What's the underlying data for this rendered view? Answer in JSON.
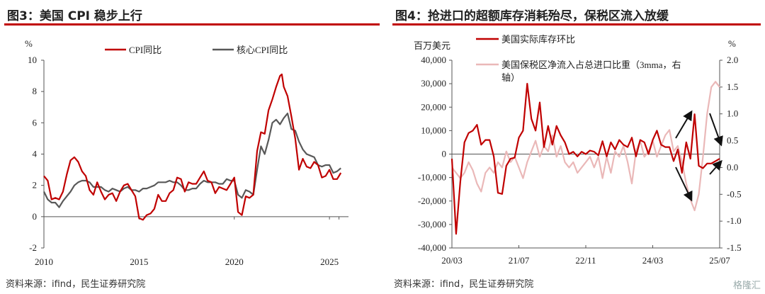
{
  "left": {
    "title": "图3：美国 CPI 稳步上行",
    "source": "资料来源：ifind，民生证券研究院",
    "chart_data": {
      "type": "line",
      "ylabel": "%",
      "ylim": [
        -2,
        10
      ],
      "yticks": [
        "-2",
        "0",
        "2",
        "4",
        "6",
        "8",
        "10"
      ],
      "xlim": [
        2010,
        2026
      ],
      "xticks": [
        "2010",
        "2015",
        "2020",
        "2025"
      ],
      "legend_position": "top",
      "series": [
        {
          "name": "CPI同比",
          "color": "#c00000",
          "x": [
            2010.0,
            2010.2,
            2010.4,
            2010.6,
            2010.8,
            2011.0,
            2011.2,
            2011.4,
            2011.6,
            2011.8,
            2012.0,
            2012.2,
            2012.4,
            2012.6,
            2012.8,
            2013.0,
            2013.2,
            2013.4,
            2013.6,
            2013.8,
            2014.0,
            2014.2,
            2014.4,
            2014.6,
            2014.8,
            2015.0,
            2015.2,
            2015.4,
            2015.6,
            2015.8,
            2016.0,
            2016.2,
            2016.4,
            2016.6,
            2016.8,
            2017.0,
            2017.2,
            2017.4,
            2017.6,
            2017.8,
            2018.0,
            2018.2,
            2018.4,
            2018.6,
            2018.8,
            2019.0,
            2019.2,
            2019.4,
            2019.6,
            2019.8,
            2020.0,
            2020.2,
            2020.4,
            2020.6,
            2020.8,
            2021.0,
            2021.2,
            2021.4,
            2021.6,
            2021.8,
            2022.0,
            2022.2,
            2022.4,
            2022.5,
            2022.6,
            2022.8,
            2023.0,
            2023.2,
            2023.4,
            2023.6,
            2023.8,
            2024.0,
            2024.2,
            2024.4,
            2024.6,
            2024.8,
            2025.0,
            2025.2,
            2025.4,
            2025.6
          ],
          "values": [
            2.6,
            2.3,
            1.1,
            1.2,
            1.1,
            1.6,
            2.7,
            3.6,
            3.8,
            3.5,
            2.9,
            2.6,
            1.7,
            1.4,
            2.2,
            1.6,
            1.1,
            1.4,
            1.5,
            1.0,
            1.6,
            2.0,
            2.1,
            1.7,
            1.3,
            -0.1,
            -0.2,
            0.1,
            0.2,
            0.5,
            1.4,
            1.0,
            1.0,
            1.5,
            1.7,
            2.5,
            2.4,
            1.6,
            2.2,
            2.1,
            2.1,
            2.5,
            2.9,
            2.3,
            2.2,
            1.5,
            1.9,
            1.8,
            1.7,
            2.1,
            2.5,
            0.3,
            0.1,
            1.3,
            1.2,
            1.4,
            4.2,
            5.4,
            5.3,
            6.8,
            7.5,
            8.3,
            9.0,
            9.1,
            8.3,
            7.7,
            6.4,
            5.0,
            3.0,
            3.7,
            3.2,
            3.1,
            3.5,
            3.3,
            2.5,
            2.6,
            3.0,
            2.4,
            2.4,
            2.8
          ]
        },
        {
          "name": "核心CPI同比",
          "color": "#595959",
          "x": [
            2010.0,
            2010.2,
            2010.4,
            2010.6,
            2010.8,
            2011.0,
            2011.2,
            2011.4,
            2011.6,
            2011.8,
            2012.0,
            2012.2,
            2012.4,
            2012.6,
            2012.8,
            2013.0,
            2013.2,
            2013.4,
            2013.6,
            2013.8,
            2014.0,
            2014.2,
            2014.4,
            2014.6,
            2014.8,
            2015.0,
            2015.2,
            2015.4,
            2015.6,
            2015.8,
            2016.0,
            2016.2,
            2016.4,
            2016.6,
            2016.8,
            2017.0,
            2017.2,
            2017.4,
            2017.6,
            2017.8,
            2018.0,
            2018.2,
            2018.4,
            2018.6,
            2018.8,
            2019.0,
            2019.2,
            2019.4,
            2019.6,
            2019.8,
            2020.0,
            2020.2,
            2020.4,
            2020.6,
            2020.8,
            2021.0,
            2021.2,
            2021.4,
            2021.6,
            2021.8,
            2022.0,
            2022.2,
            2022.4,
            2022.6,
            2022.8,
            2023.0,
            2023.2,
            2023.4,
            2023.6,
            2023.8,
            2024.0,
            2024.2,
            2024.4,
            2024.6,
            2024.8,
            2025.0,
            2025.2,
            2025.4,
            2025.6
          ],
          "values": [
            1.6,
            1.1,
            0.9,
            0.9,
            0.6,
            1.0,
            1.3,
            1.6,
            2.0,
            2.2,
            2.3,
            2.3,
            2.2,
            1.9,
            1.9,
            1.9,
            1.7,
            1.6,
            1.8,
            1.7,
            1.6,
            1.8,
            1.9,
            1.7,
            1.7,
            1.6,
            1.8,
            1.8,
            1.9,
            2.0,
            2.2,
            2.2,
            2.2,
            2.3,
            2.2,
            2.2,
            2.0,
            1.7,
            1.7,
            1.8,
            1.8,
            2.1,
            2.3,
            2.2,
            2.2,
            2.2,
            2.1,
            2.1,
            2.4,
            2.3,
            2.3,
            1.4,
            1.2,
            1.7,
            1.6,
            1.4,
            3.0,
            4.5,
            4.0,
            4.9,
            6.0,
            6.2,
            5.9,
            6.3,
            6.6,
            5.6,
            5.5,
            4.8,
            4.3,
            4.0,
            3.9,
            3.8,
            3.3,
            3.2,
            3.3,
            3.3,
            2.8,
            2.9,
            3.1
          ]
        }
      ]
    }
  },
  "right": {
    "title": "图4：抢进口的超额库存消耗殆尽，保税区流入放缓",
    "source": "资料来源：ifind，民生证券研究院",
    "watermark": "格隆汇",
    "chart_data": {
      "type": "line",
      "ylabel_left": "百万美元",
      "ylabel_right": "%",
      "ylim_left": [
        -40000,
        40000
      ],
      "yticks_left": [
        "40,000",
        "30,000",
        "20,000",
        "10,000",
        "0",
        "-10,000",
        "-20,000",
        "-30,000",
        "-40,000"
      ],
      "ylim_right": [
        -1.5,
        2.0
      ],
      "yticks_right": [
        "2.0",
        "1.5",
        "1.0",
        "0.5",
        "0.0",
        "-0.5",
        "-1.0",
        "-1.5"
      ],
      "xlim": [
        "2020-03",
        "2025-07"
      ],
      "xticks": [
        "20/03",
        "21/07",
        "22/11",
        "24/03",
        "25/07"
      ],
      "annotations": [
        "up-arrow near 2024-10",
        "down-arrow near 2025-06",
        "down-arrow near 2024-10",
        "up-arrow near 2025-06"
      ],
      "series": [
        {
          "name": "美国实际库存环比",
          "color": "#c00000",
          "axis": "left",
          "x": [
            0,
            1,
            2,
            3,
            4,
            5,
            6,
            7,
            8,
            9,
            10,
            11,
            12,
            13,
            14,
            15,
            16,
            17,
            18,
            19,
            20,
            21,
            22,
            23,
            24,
            25,
            26,
            27,
            28,
            29,
            30,
            31,
            32,
            33,
            34,
            35,
            36,
            37,
            38,
            39,
            40,
            41,
            42,
            43,
            44,
            45,
            46,
            47,
            48,
            49,
            50,
            51,
            52,
            53,
            54,
            55,
            56,
            57,
            58,
            59,
            60,
            61,
            62,
            63,
            64
          ],
          "values": [
            -2000,
            -34000,
            -12000,
            5000,
            9000,
            10000,
            12500,
            4000,
            6000,
            6000,
            -1000,
            -16500,
            -17000,
            -5000,
            -2000,
            -1500,
            7000,
            10000,
            30000,
            15000,
            10000,
            22000,
            3000,
            12000,
            4000,
            12000,
            8000,
            5000,
            0,
            1000,
            -1000,
            1000,
            0,
            1500,
            1000,
            -500,
            5500,
            -1000,
            5000,
            2000,
            6000,
            4000,
            3000,
            7000,
            -1000,
            6000,
            5000,
            0,
            6000,
            10000,
            4000,
            3000,
            3000,
            -3000,
            2000,
            -8000,
            5000,
            -2000,
            17000,
            -5000,
            -6000,
            -4000,
            -4000,
            -3000,
            -2000
          ]
        },
        {
          "name": "美国保税区净流入占总进口比重（3mma，右轴）",
          "color": "#eab8b8",
          "axis": "right",
          "x": [
            0,
            1,
            2,
            3,
            4,
            5,
            6,
            7,
            8,
            9,
            10,
            11,
            12,
            13,
            14,
            15,
            16,
            17,
            18,
            19,
            20,
            21,
            22,
            23,
            24,
            25,
            26,
            27,
            28,
            29,
            30,
            31,
            32,
            33,
            34,
            35,
            36,
            37,
            38,
            39,
            40,
            41,
            42,
            43,
            44,
            45,
            46,
            47,
            48,
            49,
            50,
            51,
            52,
            53,
            54,
            55,
            56,
            57,
            58,
            59,
            60,
            61,
            62,
            63,
            64
          ],
          "values": [
            0.0,
            -0.1,
            -0.2,
            -0.1,
            0.1,
            -0.05,
            -0.3,
            -0.45,
            -0.1,
            0.0,
            -0.1,
            0.1,
            0.0,
            0.3,
            0.1,
            0.2,
            0.0,
            -0.2,
            0.1,
            0.3,
            0.5,
            0.2,
            0.4,
            0.3,
            0.6,
            0.2,
            0.4,
            0.1,
            0.0,
            0.1,
            -0.1,
            0.0,
            0.1,
            0.2,
            0.0,
            0.2,
            -0.2,
            0.2,
            -0.1,
            0.3,
            0.2,
            0.4,
            0.1,
            -0.3,
            0.3,
            0.5,
            0.2,
            0.3,
            0.5,
            0.2,
            0.4,
            0.6,
            0.7,
            0.3,
            0.4,
            0.1,
            -0.3,
            -0.6,
            -0.8,
            -0.5,
            0.2,
            1.0,
            1.5,
            1.6,
            1.5
          ]
        }
      ]
    }
  }
}
